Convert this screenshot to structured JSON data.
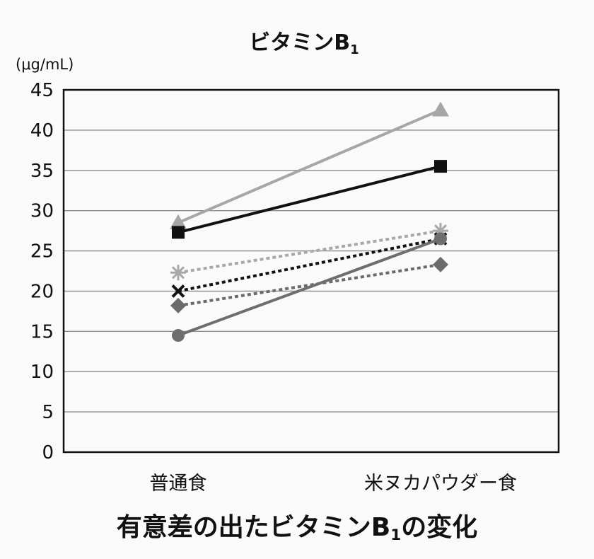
{
  "chart_data": {
    "type": "line",
    "title": "ビタミンB",
    "title_subscript": "1",
    "unit": "(μg/mL)",
    "caption": "有意差の出たビタミンB",
    "caption_subscript": "1",
    "caption_suffix": "の変化",
    "categories": [
      "普通食",
      "米ヌカパウダー食"
    ],
    "ylim": [
      0,
      45
    ],
    "yticks": [
      0,
      5,
      10,
      15,
      20,
      25,
      30,
      35,
      40,
      45
    ],
    "grid": true,
    "series": [
      {
        "values": [
          28.5,
          42.5
        ],
        "color": "#a6a6a6",
        "marker": "triangle",
        "dash": false
      },
      {
        "values": [
          27.3,
          35.5
        ],
        "color": "#111111",
        "marker": "square",
        "dash": false
      },
      {
        "values": [
          22.3,
          27.5
        ],
        "color": "#a8a8a8",
        "marker": "asterisk",
        "dash": true
      },
      {
        "values": [
          20.0,
          26.5
        ],
        "color": "#111111",
        "marker": "x",
        "dash": true
      },
      {
        "values": [
          18.2,
          23.3
        ],
        "color": "#6b6b6b",
        "marker": "diamond",
        "dash": true
      },
      {
        "values": [
          14.5,
          26.5
        ],
        "color": "#6e6e6e",
        "marker": "circle",
        "dash": false
      }
    ]
  }
}
